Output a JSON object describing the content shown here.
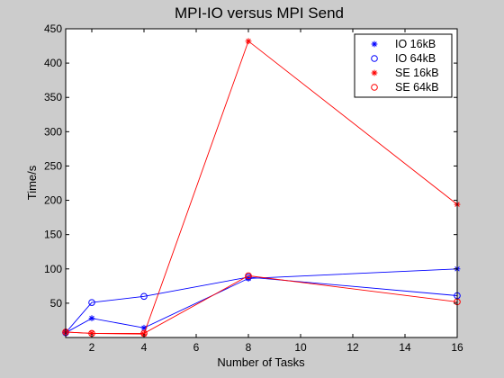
{
  "chart_data": {
    "type": "line",
    "title": "MPI-IO versus MPI Send",
    "xlabel": "Number of Tasks",
    "ylabel": "Time/s",
    "xlim": [
      1,
      16
    ],
    "ylim": [
      0,
      450
    ],
    "xticks": [
      2,
      4,
      6,
      8,
      10,
      12,
      14,
      16
    ],
    "yticks": [
      50,
      100,
      150,
      200,
      250,
      300,
      350,
      400,
      450
    ],
    "grid": false,
    "legend_position": "top-right",
    "series": [
      {
        "name": "IO 16kB",
        "color": "#0000ff",
        "marker": "star",
        "x": [
          1,
          2,
          4,
          8,
          16
        ],
        "y": [
          7,
          28,
          14,
          86,
          100
        ]
      },
      {
        "name": "IO 64kB",
        "color": "#0000ff",
        "marker": "circle",
        "x": [
          1,
          2,
          4,
          8,
          16
        ],
        "y": [
          7,
          51,
          60,
          88,
          61
        ]
      },
      {
        "name": "SE 16kB",
        "color": "#ff0000",
        "marker": "star",
        "x": [
          1,
          2,
          4,
          8,
          16
        ],
        "y": [
          8,
          6,
          5,
          432,
          194
        ]
      },
      {
        "name": "SE 64kB",
        "color": "#ff0000",
        "marker": "circle",
        "x": [
          1,
          2,
          4,
          8,
          16
        ],
        "y": [
          8,
          6,
          6,
          90,
          52
        ]
      }
    ]
  }
}
